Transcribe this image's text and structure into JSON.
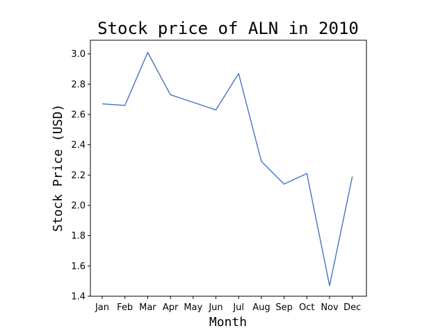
{
  "chart_data": {
    "type": "line",
    "title": "Stock price of ALN in 2010",
    "xlabel": "Month",
    "ylabel": "Stock Price (USD)",
    "categories": [
      "Jan",
      "Feb",
      "Mar",
      "Apr",
      "May",
      "Jun",
      "Jul",
      "Aug",
      "Sep",
      "Oct",
      "Nov",
      "Dec"
    ],
    "series": [
      {
        "values": [
          2.67,
          2.66,
          3.01,
          2.73,
          2.68,
          2.63,
          2.87,
          2.29,
          2.14,
          2.21,
          1.47,
          2.19
        ],
        "color": "#4472c4"
      }
    ],
    "ylim": [
      1.4,
      3.09
    ],
    "yticks": [
      "1.4",
      "1.6",
      "1.8",
      "2.0",
      "2.2",
      "2.4",
      "2.6",
      "2.8",
      "3.0"
    ],
    "grid": false,
    "legend": "none"
  }
}
